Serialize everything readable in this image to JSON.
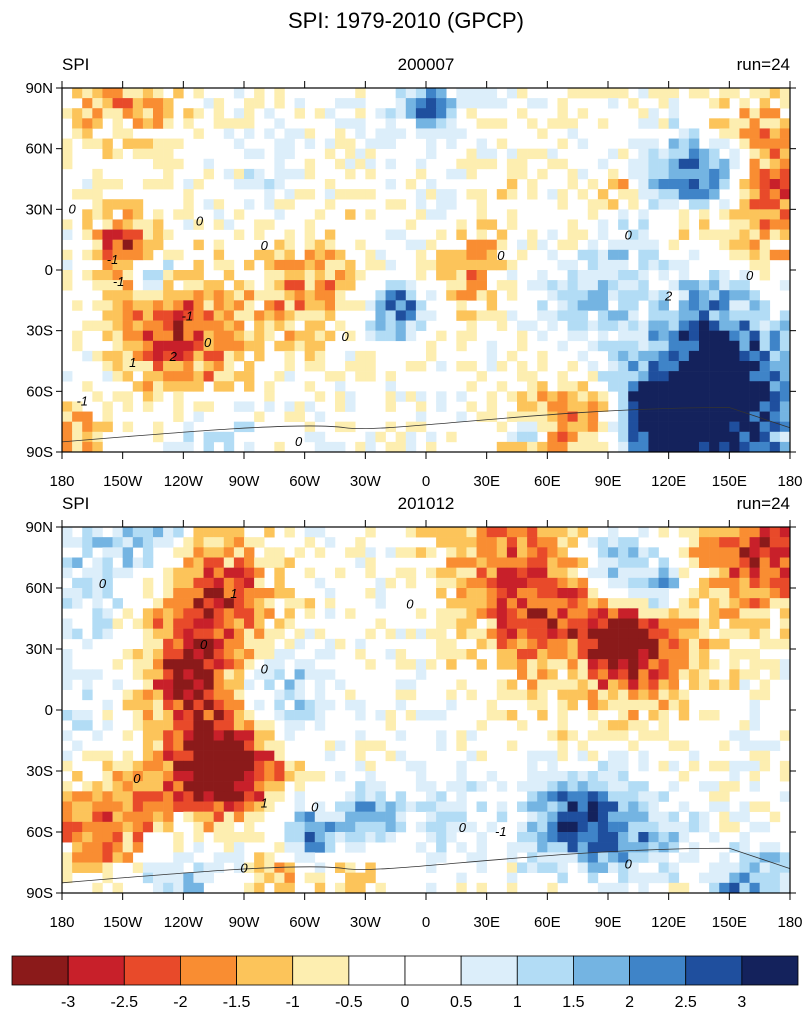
{
  "title": "SPI: 1979-2010 (GPCP)",
  "lat_ticks": [
    {
      "value": 90,
      "label": "90N"
    },
    {
      "value": 60,
      "label": "60N"
    },
    {
      "value": 30,
      "label": "30N"
    },
    {
      "value": 0,
      "label": "0"
    },
    {
      "value": -30,
      "label": "30S"
    },
    {
      "value": -60,
      "label": "60S"
    },
    {
      "value": -90,
      "label": "90S"
    }
  ],
  "lon_ticks": [
    {
      "value": -180,
      "label": "180"
    },
    {
      "value": -150,
      "label": "150W"
    },
    {
      "value": -120,
      "label": "120W"
    },
    {
      "value": -90,
      "label": "90W"
    },
    {
      "value": -60,
      "label": "60W"
    },
    {
      "value": -30,
      "label": "30W"
    },
    {
      "value": 0,
      "label": "0"
    },
    {
      "value": 30,
      "label": "30E"
    },
    {
      "value": 60,
      "label": "60E"
    },
    {
      "value": 90,
      "label": "90E"
    },
    {
      "value": 120,
      "label": "120E"
    },
    {
      "value": 150,
      "label": "150E"
    },
    {
      "value": 180,
      "label": "180"
    }
  ],
  "panels": [
    {
      "left": "SPI",
      "center": "200007",
      "right": "run=24",
      "contour_labels": [
        -1,
        0,
        -1,
        0,
        -1,
        0,
        2,
        1,
        0,
        0,
        -1,
        0,
        0,
        2,
        0,
        0
      ]
    },
    {
      "left": "SPI",
      "center": "201012",
      "right": "run=24",
      "contour_labels": [
        0,
        0,
        0,
        1,
        0,
        0,
        0,
        0,
        -1,
        1,
        0,
        0
      ]
    }
  ],
  "colorbar": {
    "levels": [
      -3,
      -2.5,
      -2,
      -1.5,
      -1,
      -0.5,
      0,
      0.5,
      1,
      1.5,
      2,
      2.5,
      3
    ],
    "colors": [
      "#8b1a1a",
      "#c8202a",
      "#e84a2a",
      "#f98d32",
      "#fcc45a",
      "#fdeeb0",
      "#ffffff",
      "#ffffff",
      "#dceefa",
      "#b2dcf5",
      "#74b4e2",
      "#3f84c8",
      "#1f4f9e",
      "#14225c"
    ]
  }
}
